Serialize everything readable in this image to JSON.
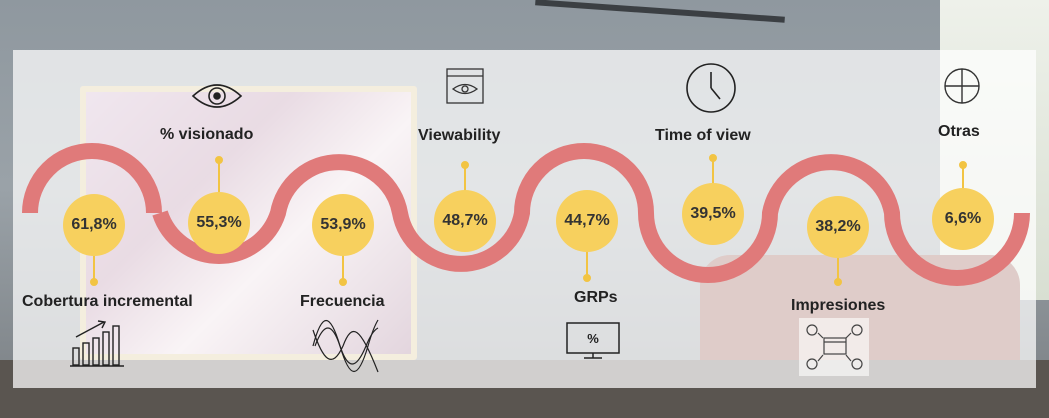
{
  "colors": {
    "wave": "#e07a7a",
    "circle": "#f7d05e",
    "stem": "#f2c443",
    "panel": "rgba(255,255,255,0.72)"
  },
  "metrics": [
    {
      "label": "Cobertura incremental",
      "value": "61,8%",
      "icon": "bar-chart-growth-icon"
    },
    {
      "label": "% visionado",
      "value": "55,3%",
      "icon": "eye-icon"
    },
    {
      "label": "Frecuencia",
      "value": "53,9%",
      "icon": "wave-frequency-icon"
    },
    {
      "label": "Viewability",
      "value": "48,7%",
      "icon": "browser-eye-icon"
    },
    {
      "label": "GRPs",
      "value": "44,7%",
      "icon": "monitor-percent-icon"
    },
    {
      "label": "Time of view",
      "value": "39,5%",
      "icon": "clock-icon"
    },
    {
      "label": "Impresiones",
      "value": "38,2%",
      "icon": "network-screen-icon"
    },
    {
      "label": "Otras",
      "value": "6,6%",
      "icon": "plus-circle-icon"
    }
  ]
}
